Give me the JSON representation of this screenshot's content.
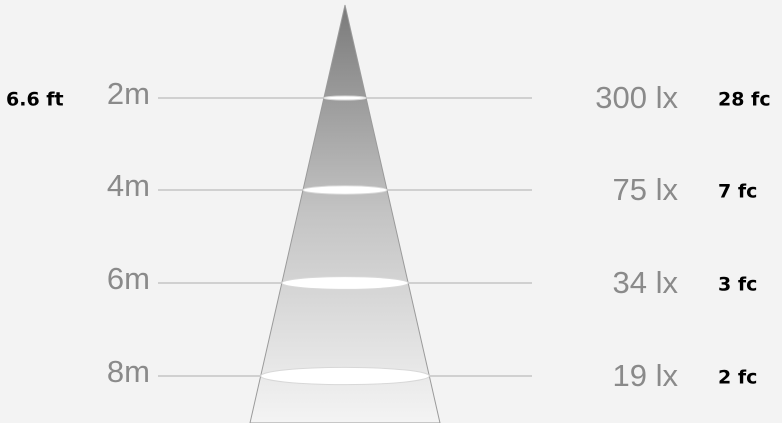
{
  "rows": [
    {
      "feet": "6.6 ft",
      "distance": "2m",
      "lux": "300 lx",
      "fc": "28 fc"
    },
    {
      "distance": "4m",
      "lux": "75 lx",
      "fc": "7 fc"
    },
    {
      "distance": "6m",
      "lux": "34 lx",
      "fc": "3 fc"
    },
    {
      "distance": "8m",
      "lux": "19 lx",
      "fc": "2 fc"
    }
  ]
}
